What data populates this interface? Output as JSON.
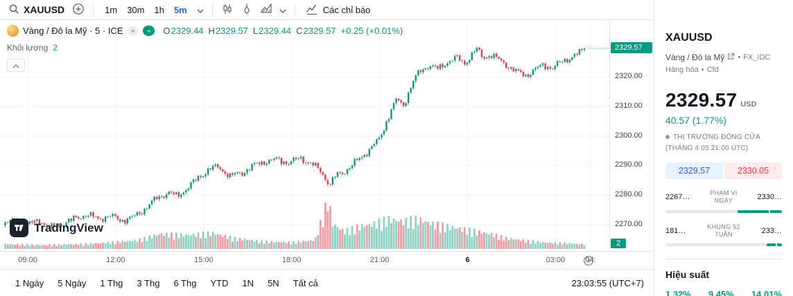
{
  "toolbar": {
    "symbol": "XAUUSD",
    "intervals": [
      {
        "label": "1m",
        "active": false
      },
      {
        "label": "30m",
        "active": false
      },
      {
        "label": "1h",
        "active": false
      },
      {
        "label": "5m",
        "active": true
      }
    ],
    "indicators_label": "Các chỉ báo"
  },
  "legend": {
    "title": "Vàng / Đô la Mỹ · 5 · ICE",
    "pill1": "≈",
    "pill2": "≈",
    "ohlc": {
      "o_label": "O",
      "o": "2329.44",
      "h_label": "H",
      "h": "2329.57",
      "l_label": "L",
      "l": "2329.44",
      "c_label": "C",
      "c": "2329.57",
      "change": "+0.25 (+0.01%)"
    },
    "volume_label": "Khối lượng",
    "volume_value": "2"
  },
  "watermark": "TradingView",
  "price_axis": {
    "last_price": "2329.57",
    "volume_tag": "2"
  },
  "bottom_bar": {
    "ranges": [
      "1 Ngày",
      "5 Ngày",
      "1 Thg",
      "3 Thg",
      "6 Thg",
      "YTD",
      "1N",
      "5N",
      "Tất cả"
    ],
    "clock": "23:03:55 (UTC+7)"
  },
  "panel": {
    "symbol": "XAUUSD",
    "name": "Vàng / Đô la Mỹ",
    "bullet": "•",
    "exchange": "FX_IDC",
    "type": "Hàng hóa",
    "market": "Cfd",
    "price": "2329.57",
    "currency": "USD",
    "change": "40.57 (1.77%)",
    "market_status": "THỊ TRƯỜNG ĐÓNG CỬA",
    "market_status_detail": "(THÁNG 4 05 21:00 UTC)",
    "bid": "2329.57",
    "ask": "2330.05",
    "day_range": {
      "low": "2267…",
      "label": "PHẠM VI NGÀY",
      "high": "2330…"
    },
    "week52": {
      "low": "181…",
      "label": "KHUNG 52 TUẦN",
      "high": "233…"
    },
    "performance_title": "Hiệu suất",
    "performance": [
      {
        "value": "1.32%"
      },
      {
        "value": "9.45%"
      },
      {
        "value": "14.01%"
      }
    ]
  },
  "colors": {
    "up": "#089981",
    "down": "#F23645",
    "vol_up": "rgba(8,153,129,0.45)",
    "vol_down": "rgba(242,54,69,0.5)",
    "accent_blue": "#2962FF",
    "grid": "#F0F3FA",
    "last_price_bg": "#089981",
    "border": "#E0E3EB",
    "text_gray": "#787B86",
    "green_text": "#089981"
  },
  "chart_data": {
    "type": "candlestick+volume",
    "title": "Vàng / Đô la Mỹ · 5 · ICE (XAUUSD)",
    "interval_minutes": 5,
    "x_unit": "hours, 24+ = next day (label 6 = new date at midnight)",
    "x_range": [
      8.15,
      28.05
    ],
    "y_ticks": [
      2270,
      2280,
      2290,
      2300,
      2310,
      2320
    ],
    "y_range_visible": [
      2262,
      2339
    ],
    "time_ticks": [
      {
        "t": 9,
        "label": "09:00",
        "bold": false
      },
      {
        "t": 12,
        "label": "12:00",
        "bold": false
      },
      {
        "t": 15,
        "label": "15:00",
        "bold": false
      },
      {
        "t": 18,
        "label": "18:00",
        "bold": false
      },
      {
        "t": 21,
        "label": "21:00",
        "bold": false
      },
      {
        "t": 24,
        "label": "6",
        "bold": true
      },
      {
        "t": 27,
        "label": "03:00",
        "bold": false
      },
      {
        "t": 28.2,
        "label": "04:",
        "bold": false
      }
    ],
    "last": {
      "open": 2329.44,
      "high": 2329.57,
      "low": 2329.44,
      "close": 2329.57,
      "change": "+0.25 (+0.01%)"
    },
    "price_anchors": [
      [
        8.15,
        2270.5
      ],
      [
        8.6,
        2271.5
      ],
      [
        9.0,
        2270.0
      ],
      [
        9.4,
        2271.5
      ],
      [
        9.8,
        2269.0
      ],
      [
        10.2,
        2270.5
      ],
      [
        10.6,
        2272.0
      ],
      [
        11.0,
        2273.5
      ],
      [
        11.4,
        2272.0
      ],
      [
        11.8,
        2273.0
      ],
      [
        12.2,
        2271.5
      ],
      [
        12.6,
        2272.5
      ],
      [
        13.0,
        2275.5
      ],
      [
        13.4,
        2279.0
      ],
      [
        13.8,
        2281.0
      ],
      [
        14.1,
        2279.5
      ],
      [
        14.5,
        2283.0
      ],
      [
        14.9,
        2286.5
      ],
      [
        15.2,
        2289.0
      ],
      [
        15.5,
        2289.5
      ],
      [
        15.9,
        2286.5
      ],
      [
        16.3,
        2287.5
      ],
      [
        16.7,
        2290.0
      ],
      [
        17.1,
        2291.5
      ],
      [
        17.5,
        2292.0
      ],
      [
        17.9,
        2291.0
      ],
      [
        18.3,
        2292.5
      ],
      [
        18.7,
        2290.5
      ],
      [
        19.0,
        2288.0
      ],
      [
        19.3,
        2283.5
      ],
      [
        19.5,
        2286.5
      ],
      [
        19.8,
        2288.0
      ],
      [
        20.1,
        2290.5
      ],
      [
        20.4,
        2293.0
      ],
      [
        20.7,
        2296.0
      ],
      [
        21.0,
        2299.0
      ],
      [
        21.2,
        2304.0
      ],
      [
        21.4,
        2309.0
      ],
      [
        21.6,
        2312.5
      ],
      [
        21.8,
        2310.0
      ],
      [
        22.0,
        2315.0
      ],
      [
        22.2,
        2319.5
      ],
      [
        22.4,
        2322.0
      ],
      [
        22.7,
        2324.0
      ],
      [
        23.0,
        2322.5
      ],
      [
        23.3,
        2325.0
      ],
      [
        23.6,
        2326.5
      ],
      [
        23.9,
        2324.5
      ],
      [
        24.1,
        2327.0
      ],
      [
        24.3,
        2329.5
      ],
      [
        24.5,
        2326.5
      ],
      [
        24.8,
        2327.5
      ],
      [
        25.1,
        2325.5
      ],
      [
        25.4,
        2323.5
      ],
      [
        25.7,
        2321.5
      ],
      [
        26.0,
        2320.5
      ],
      [
        26.3,
        2322.5
      ],
      [
        26.6,
        2324.0
      ],
      [
        26.9,
        2323.0
      ],
      [
        27.2,
        2325.0
      ],
      [
        27.5,
        2326.5
      ],
      [
        27.8,
        2328.0
      ],
      [
        28.05,
        2329.57
      ]
    ],
    "volume_anchors": [
      [
        8.15,
        0.1
      ],
      [
        9.5,
        0.08
      ],
      [
        11,
        0.1
      ],
      [
        12,
        0.14
      ],
      [
        12.8,
        0.18
      ],
      [
        13.5,
        0.3
      ],
      [
        14.5,
        0.28
      ],
      [
        15.3,
        0.32
      ],
      [
        16,
        0.22
      ],
      [
        17,
        0.15
      ],
      [
        18,
        0.13
      ],
      [
        18.8,
        0.18
      ],
      [
        19.25,
        1.0
      ],
      [
        19.4,
        0.5
      ],
      [
        19.8,
        0.35
      ],
      [
        20.3,
        0.45
      ],
      [
        20.8,
        0.5
      ],
      [
        21.3,
        0.6
      ],
      [
        21.8,
        0.55
      ],
      [
        22.3,
        0.6
      ],
      [
        22.8,
        0.5
      ],
      [
        23.3,
        0.45
      ],
      [
        23.8,
        0.4
      ],
      [
        24.3,
        0.35
      ],
      [
        24.8,
        0.3
      ],
      [
        25.3,
        0.22
      ],
      [
        25.8,
        0.18
      ],
      [
        26.3,
        0.15
      ],
      [
        26.8,
        0.12
      ],
      [
        27.3,
        0.12
      ],
      [
        27.8,
        0.1
      ],
      [
        28.05,
        0.08
      ]
    ]
  }
}
